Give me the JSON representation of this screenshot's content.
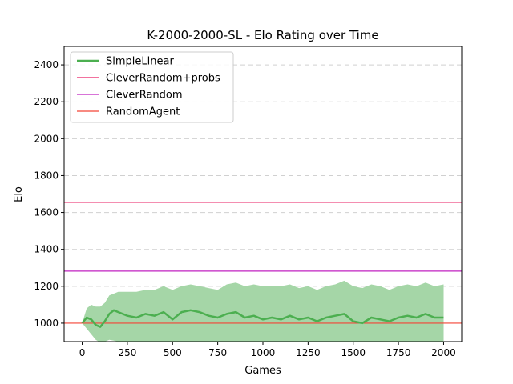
{
  "chart_data": {
    "type": "line",
    "title": "K-2000-2000-SL - Elo Rating over Time",
    "xlabel": "Games",
    "ylabel": "Elo",
    "xlim": [
      -100,
      2100
    ],
    "ylim": [
      900,
      2500
    ],
    "xticks": [
      0,
      250,
      500,
      750,
      1000,
      1250,
      1500,
      1750,
      2000
    ],
    "yticks": [
      1000,
      1200,
      1400,
      1600,
      1800,
      2000,
      2200,
      2400
    ],
    "grid": "horizontal dashed",
    "legend_position": "upper left",
    "series": [
      {
        "name": "SimpleLinear",
        "color": "#4caf50",
        "band_color": "#a5d6a7",
        "x": [
          0,
          25,
          50,
          75,
          100,
          125,
          150,
          175,
          200,
          250,
          300,
          350,
          400,
          450,
          500,
          550,
          600,
          650,
          700,
          750,
          800,
          850,
          900,
          950,
          1000,
          1050,
          1100,
          1150,
          1200,
          1250,
          1300,
          1350,
          1400,
          1450,
          1500,
          1550,
          1600,
          1650,
          1700,
          1750,
          1800,
          1850,
          1900,
          1950,
          2000
        ],
        "y": [
          1000,
          1030,
          1020,
          990,
          980,
          1010,
          1050,
          1070,
          1060,
          1040,
          1030,
          1050,
          1040,
          1060,
          1020,
          1060,
          1070,
          1060,
          1040,
          1030,
          1050,
          1060,
          1030,
          1040,
          1020,
          1030,
          1020,
          1040,
          1020,
          1030,
          1010,
          1030,
          1040,
          1050,
          1010,
          1000,
          1030,
          1020,
          1010,
          1030,
          1040,
          1030,
          1050,
          1030,
          1030
        ],
        "lower": [
          1000,
          970,
          940,
          910,
          895,
          900,
          910,
          905,
          900,
          880,
          870,
          880,
          870,
          880,
          850,
          860,
          880,
          880,
          860,
          850,
          870,
          860,
          850,
          850,
          840,
          840,
          840,
          850,
          840,
          840,
          840,
          840,
          850,
          860,
          830,
          820,
          840,
          840,
          830,
          840,
          860,
          850,
          860,
          850,
          850
        ],
        "upper": [
          1000,
          1080,
          1100,
          1090,
          1090,
          1110,
          1150,
          1160,
          1170,
          1170,
          1170,
          1180,
          1180,
          1200,
          1180,
          1200,
          1210,
          1200,
          1190,
          1180,
          1210,
          1220,
          1200,
          1210,
          1200,
          1200,
          1200,
          1210,
          1190,
          1200,
          1180,
          1200,
          1210,
          1230,
          1200,
          1190,
          1210,
          1200,
          1180,
          1200,
          1210,
          1200,
          1220,
          1200,
          1210
        ]
      },
      {
        "name": "CleverRandom+probs",
        "color": "#e91e63",
        "y": 1655
      },
      {
        "name": "CleverRandom",
        "color": "#c020c0",
        "y": 1282
      },
      {
        "name": "RandomAgent",
        "color": "#f44336",
        "y": 1000
      }
    ]
  }
}
